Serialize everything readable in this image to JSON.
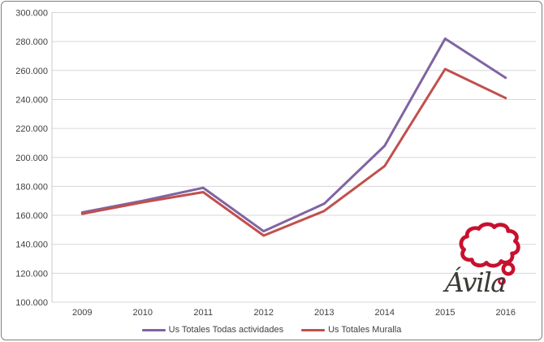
{
  "colors": {
    "series_todas": "#8064A2",
    "series_muralla": "#C0504D",
    "gridline": "#D7D7D7",
    "axis_line": "#C8C8C8",
    "frame_border": "#7f7f7f",
    "tick_text": "#3f3f3f",
    "logo_red": "#C8102E",
    "logo_text_color": "#3C3A35"
  },
  "chart_data": {
    "type": "line",
    "title": "",
    "categories": [
      "2009",
      "2010",
      "2011",
      "2012",
      "2013",
      "2014",
      "2015",
      "2016"
    ],
    "series": [
      {
        "name": "Us Totales Todas actividades",
        "color": "#8064A2",
        "values": [
          162000,
          170000,
          179000,
          149000,
          168000,
          208000,
          282000,
          255000
        ]
      },
      {
        "name": "Us Totales Muralla",
        "color": "#C0504D",
        "values": [
          161000,
          169000,
          176000,
          146000,
          163000,
          194000,
          261000,
          241000
        ]
      }
    ],
    "xlabel": "",
    "ylabel": "",
    "y_axis": {
      "min": 100000,
      "max": 300000,
      "step": 20000,
      "tick_labels": [
        "100.000",
        "120.000",
        "140.000",
        "160.000",
        "180.000",
        "200.000",
        "220.000",
        "240.000",
        "260.000",
        "280.000",
        "300.000"
      ]
    },
    "grid": true,
    "legend_position": "bottom"
  },
  "logo": {
    "text": "Ávila"
  }
}
